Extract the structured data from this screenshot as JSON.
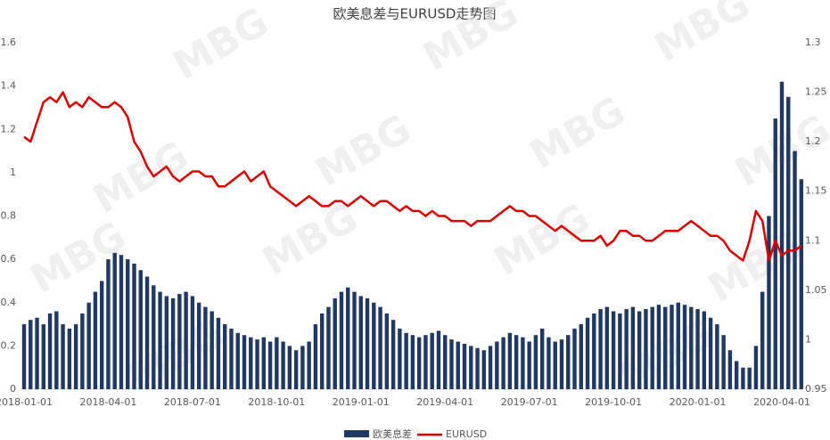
{
  "chart_data": {
    "type": "bar-line",
    "title": "欧美息差与EURUSD走势图",
    "watermark": "MBG",
    "categories": [
      "2018-01-01",
      null,
      null,
      null,
      null,
      null,
      null,
      null,
      null,
      null,
      null,
      null,
      null,
      "2018-04-01",
      null,
      null,
      null,
      null,
      null,
      null,
      null,
      null,
      null,
      null,
      null,
      null,
      "2018-07-01",
      null,
      null,
      null,
      null,
      null,
      null,
      null,
      null,
      null,
      null,
      null,
      null,
      "2018-10-01",
      null,
      null,
      null,
      null,
      null,
      null,
      null,
      null,
      null,
      null,
      null,
      null,
      "2019-01-01",
      null,
      null,
      null,
      null,
      null,
      null,
      null,
      null,
      null,
      null,
      null,
      null,
      "2019-04-01",
      null,
      null,
      null,
      null,
      null,
      null,
      null,
      null,
      null,
      null,
      null,
      null,
      "2019-07-01",
      null,
      null,
      null,
      null,
      null,
      null,
      null,
      null,
      null,
      null,
      null,
      null,
      "2019-10-01",
      null,
      null,
      null,
      null,
      null,
      null,
      null,
      null,
      null,
      null,
      null,
      null,
      "2020-01-01",
      null,
      null,
      null,
      null,
      null,
      null,
      null,
      null,
      null,
      null,
      null,
      null,
      "2020-04-01",
      null,
      null,
      null
    ],
    "series": [
      {
        "name": "欧美息差",
        "color": "#1f3864",
        "values": [
          0.3,
          0.32,
          0.33,
          0.3,
          0.35,
          0.36,
          0.3,
          0.28,
          0.3,
          0.35,
          0.4,
          0.45,
          0.5,
          0.6,
          0.63,
          0.62,
          0.6,
          0.58,
          0.55,
          0.52,
          0.48,
          0.45,
          0.43,
          0.42,
          0.44,
          0.45,
          0.43,
          0.4,
          0.38,
          0.36,
          0.33,
          0.3,
          0.28,
          0.26,
          0.25,
          0.24,
          0.23,
          0.24,
          0.22,
          0.24,
          0.22,
          0.2,
          0.18,
          0.2,
          0.22,
          0.3,
          0.35,
          0.38,
          0.42,
          0.45,
          0.47,
          0.45,
          0.43,
          0.42,
          0.4,
          0.38,
          0.35,
          0.32,
          0.28,
          0.26,
          0.25,
          0.24,
          0.25,
          0.26,
          0.27,
          0.25,
          0.23,
          0.22,
          0.21,
          0.2,
          0.19,
          0.18,
          0.2,
          0.22,
          0.24,
          0.26,
          0.25,
          0.24,
          0.22,
          0.25,
          0.28,
          0.24,
          0.22,
          0.23,
          0.25,
          0.28,
          0.3,
          0.33,
          0.35,
          0.37,
          0.38,
          0.36,
          0.35,
          0.37,
          0.38,
          0.36,
          0.37,
          0.38,
          0.39,
          0.38,
          0.39,
          0.4,
          0.39,
          0.38,
          0.37,
          0.36,
          0.33,
          0.3,
          0.25,
          0.18,
          0.13,
          0.1,
          0.1,
          0.2,
          0.45,
          0.8,
          1.25,
          1.42,
          1.35,
          1.1,
          0.97
        ]
      },
      {
        "name": "EURUSD",
        "color": "#e00000",
        "axis": "y2",
        "values": [
          1.205,
          1.2,
          1.22,
          1.24,
          1.245,
          1.24,
          1.25,
          1.235,
          1.24,
          1.235,
          1.245,
          1.24,
          1.235,
          1.235,
          1.24,
          1.235,
          1.225,
          1.2,
          1.19,
          1.175,
          1.165,
          1.17,
          1.175,
          1.165,
          1.16,
          1.165,
          1.17,
          1.17,
          1.165,
          1.165,
          1.155,
          1.155,
          1.16,
          1.165,
          1.17,
          1.16,
          1.165,
          1.17,
          1.155,
          1.15,
          1.145,
          1.14,
          1.135,
          1.14,
          1.145,
          1.14,
          1.135,
          1.135,
          1.14,
          1.14,
          1.135,
          1.14,
          1.145,
          1.14,
          1.135,
          1.14,
          1.14,
          1.135,
          1.13,
          1.135,
          1.13,
          1.13,
          1.125,
          1.13,
          1.125,
          1.125,
          1.12,
          1.12,
          1.12,
          1.115,
          1.12,
          1.12,
          1.12,
          1.125,
          1.13,
          1.135,
          1.13,
          1.13,
          1.125,
          1.125,
          1.12,
          1.115,
          1.11,
          1.115,
          1.11,
          1.105,
          1.1,
          1.1,
          1.1,
          1.105,
          1.095,
          1.1,
          1.11,
          1.11,
          1.105,
          1.105,
          1.1,
          1.1,
          1.105,
          1.11,
          1.11,
          1.11,
          1.115,
          1.12,
          1.115,
          1.11,
          1.105,
          1.105,
          1.1,
          1.09,
          1.085,
          1.08,
          1.1,
          1.13,
          1.12,
          1.08,
          1.1,
          1.085,
          1.09,
          1.09,
          1.095
        ]
      }
    ],
    "ylim": [
      0,
      1.6
    ],
    "yticks": [
      0,
      0.2,
      0.4,
      0.6,
      0.8,
      1,
      1.2,
      1.4,
      1.6
    ],
    "y2lim": [
      0.95,
      1.3
    ],
    "y2ticks": [
      0.95,
      1,
      1.05,
      1.1,
      1.15,
      1.2,
      1.25,
      1.3
    ],
    "legend": "bottom"
  }
}
